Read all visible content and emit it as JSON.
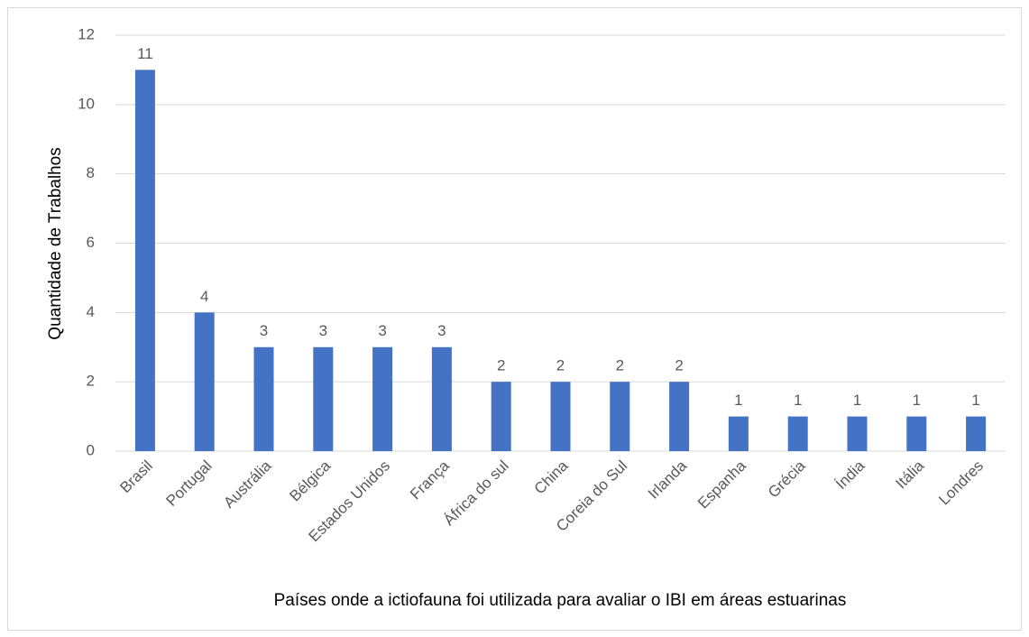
{
  "chart_data": {
    "type": "bar",
    "x_label": "Países onde a ictiofauna foi utilizada para avaliar o IBI em áreas estuarinas",
    "y_label": "Quantidade de Trabalhos",
    "categories": [
      "Brasil",
      "Portugal",
      "Austrália",
      "Bélgica",
      "Estados Unidos",
      "França",
      "África do sul",
      "China",
      "Coreia do Sul",
      "Irlanda",
      "Espanha",
      "Grécia",
      "Índia",
      "Itália",
      "Londres"
    ],
    "values": [
      11,
      4,
      3,
      3,
      3,
      3,
      2,
      2,
      2,
      2,
      1,
      1,
      1,
      1,
      1
    ],
    "color": "#4472c4",
    "ylim": [
      0,
      12
    ],
    "yticks": [
      0,
      2,
      4,
      6,
      8,
      10,
      12
    ],
    "grid": true
  }
}
